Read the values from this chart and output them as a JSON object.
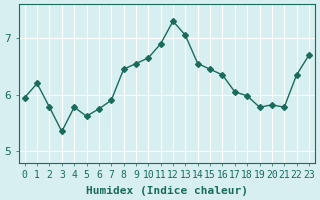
{
  "xlabel": "Humidex (Indice chaleur)",
  "ylabel": "",
  "x": [
    0,
    1,
    2,
    3,
    4,
    5,
    6,
    7,
    8,
    9,
    10,
    11,
    12,
    13,
    14,
    15,
    16,
    17,
    18,
    19,
    20,
    21,
    22,
    23
  ],
  "y": [
    5.95,
    6.2,
    5.78,
    5.35,
    5.78,
    5.62,
    5.75,
    5.9,
    6.45,
    6.55,
    6.65,
    6.9,
    7.3,
    7.05,
    6.55,
    6.45,
    6.35,
    6.05,
    5.98,
    5.78,
    5.82,
    5.78,
    6.35,
    6.7
  ],
  "line_color": "#1a6b5a",
  "marker": "D",
  "marker_size": 3,
  "background_color": "#d7eff0",
  "grid_color": "#ffffff",
  "ylim": [
    4.8,
    7.6
  ],
  "yticks": [
    5,
    6,
    7
  ],
  "xticks": [
    0,
    1,
    2,
    3,
    4,
    5,
    6,
    7,
    8,
    9,
    10,
    11,
    12,
    13,
    14,
    15,
    16,
    17,
    18,
    19,
    20,
    21,
    22,
    23
  ],
  "tick_color": "#1a6b5a",
  "label_color": "#1a6b5a",
  "title_color": "#1a6b5a",
  "font_size": 7,
  "title_font_size": 7.5
}
